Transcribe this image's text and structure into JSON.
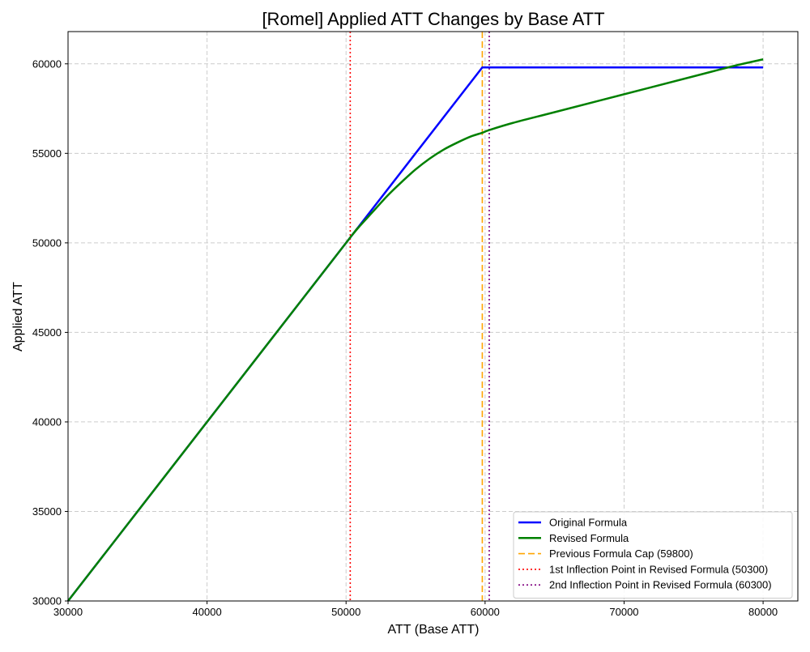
{
  "chart_data": {
    "type": "line",
    "title": "[Romel] Applied ATT Changes by Base ATT",
    "xlabel": "ATT (Base ATT)",
    "ylabel": "Applied ATT",
    "xlim": [
      30000,
      82500
    ],
    "ylim": [
      30000,
      61800
    ],
    "xticks": [
      30000,
      40000,
      50000,
      60000,
      70000,
      80000
    ],
    "yticks": [
      30000,
      35000,
      40000,
      45000,
      50000,
      55000,
      60000
    ],
    "xtick_labels": [
      "30000",
      "40000",
      "50000",
      "60000",
      "70000",
      "80000"
    ],
    "ytick_labels": [
      "30000",
      "35000",
      "40000",
      "45000",
      "50000",
      "55000",
      "60000"
    ],
    "grid": true,
    "legend_position": "lower-right",
    "series": [
      {
        "name": "Original Formula",
        "color": "#0000ff",
        "style": "solid",
        "x": [
          30000,
          40000,
          50000,
          59800,
          70000,
          80000
        ],
        "y": [
          30000,
          40000,
          50000,
          59800,
          59800,
          59800
        ]
      },
      {
        "name": "Revised Formula",
        "color": "#008000",
        "style": "solid",
        "x": [
          30000,
          40000,
          50000,
          50300,
          51000,
          52000,
          53000,
          54000,
          55000,
          56000,
          57000,
          58000,
          59000,
          59800,
          60300,
          62000,
          65000,
          70000,
          75000,
          78000,
          80000
        ],
        "y": [
          30000,
          40000,
          50000,
          50300,
          50950,
          51800,
          52650,
          53400,
          54100,
          54700,
          55200,
          55600,
          55950,
          56150,
          56300,
          56700,
          57300,
          58300,
          59300,
          59900,
          60250
        ]
      }
    ],
    "reference_lines": [
      {
        "name": "Previous Formula Cap (59800)",
        "x": 59800,
        "color": "#ffa500",
        "style": "dashed"
      },
      {
        "name": "1st Inflection Point in Revised Formula (50300)",
        "x": 50300,
        "color": "#ff0000",
        "style": "dotted"
      },
      {
        "name": "2nd Inflection Point in Revised Formula (60300)",
        "x": 60300,
        "color": "#800080",
        "style": "dotted"
      }
    ]
  }
}
